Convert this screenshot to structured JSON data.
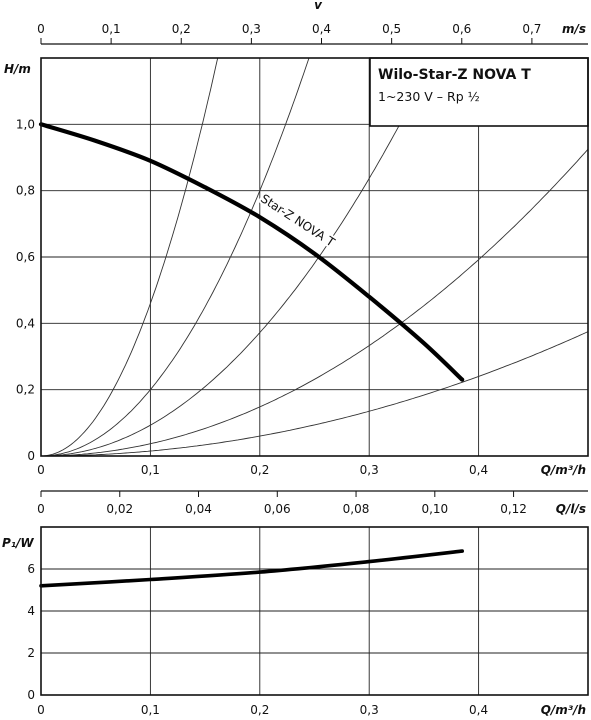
{
  "chart_data": [
    {
      "type": "line",
      "name": "pump-curve",
      "title": "Wilo-Star-Z NOVA T",
      "subtitle": "1~230 V – Rp ½",
      "xlabel": "Q/m³/h",
      "ylabel": "H/m",
      "xlim": [
        0,
        0.5
      ],
      "ylim": [
        0,
        1.2
      ],
      "xticks": [
        "0",
        "0,1",
        "0,2",
        "0,3",
        "0,4"
      ],
      "yticks": [
        "0",
        "0,2",
        "0,4",
        "0,6",
        "0,8",
        "1,0"
      ],
      "series": [
        {
          "name": "Star-Z NOVA T",
          "x": [
            0,
            0.05,
            0.1,
            0.15,
            0.2,
            0.25,
            0.3,
            0.35,
            0.385
          ],
          "y": [
            1.0,
            0.95,
            0.89,
            0.81,
            0.72,
            0.61,
            0.48,
            0.34,
            0.23
          ]
        }
      ],
      "system_curves_k": [
        46,
        20,
        9.3,
        3.7,
        1.5
      ],
      "top_axis": {
        "title": "v",
        "unit": "m/s",
        "xlim": [
          0,
          0.78
        ],
        "ticks": [
          "0",
          "0,1",
          "0,2",
          "0,3",
          "0,4",
          "0,5",
          "0,6",
          "0,7"
        ]
      },
      "mid_axis": {
        "unit": "Q/l/s",
        "xlim": [
          0,
          0.1389
        ],
        "ticks": [
          "0",
          "0,02",
          "0,04",
          "0,06",
          "0,08",
          "0,10",
          "0,12"
        ]
      },
      "grid": true
    },
    {
      "type": "line",
      "name": "power-curve",
      "xlabel": "Q/m³/h",
      "ylabel": "P₁/W",
      "xlim": [
        0,
        0.5
      ],
      "ylim": [
        0,
        8
      ],
      "xticks": [
        "0",
        "0,1",
        "0,2",
        "0,3",
        "0,4"
      ],
      "yticks": [
        "0",
        "2",
        "4",
        "6"
      ],
      "series": [
        {
          "name": "",
          "x": [
            0,
            0.1,
            0.2,
            0.3,
            0.385
          ],
          "y": [
            5.2,
            5.5,
            5.85,
            6.35,
            6.85
          ]
        }
      ],
      "grid": true
    }
  ]
}
